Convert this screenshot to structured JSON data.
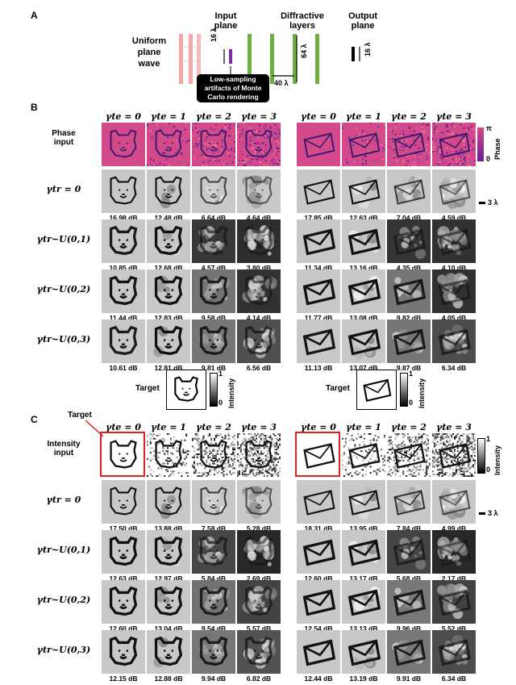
{
  "panelA": {
    "label": "A",
    "input_plane": "Input\nplane",
    "diffractive_layers": "Diffractive\nlayers",
    "output_plane": "Output\nplane",
    "uniform_wave": "Uniform\nplane\nwave",
    "dim_16a": "16 λ",
    "dim_64": "64 λ",
    "dim_40": "40 λ",
    "dim_16b": "16 λ",
    "callout": "Low-sampling\nartifacts of Monte\nCarlo rendering"
  },
  "panelB": {
    "label": "B",
    "headers": [
      "γte = 0",
      "γte = 1",
      "γte = 2",
      "γte = 3"
    ],
    "input_label": "Phase\ninput",
    "rows": [
      "γtr = 0",
      "γtr~U(0,1)",
      "γtr~U(0,2)",
      "γtr~U(0,3)"
    ],
    "bear_db": [
      [
        "16.98 dB",
        "12.48 dB",
        "6.64 dB",
        "4.64 dB"
      ],
      [
        "10.85 dB",
        "12.68 dB",
        "4.57 dB",
        "3.80 dB"
      ],
      [
        "11.44 dB",
        "12.83 dB",
        "9.58 dB",
        "4.14 dB"
      ],
      [
        "10.61 dB",
        "12.81 dB",
        "9.81 dB",
        "6.56 dB"
      ]
    ],
    "env_db": [
      [
        "17.85 dB",
        "12.63 dB",
        "7.04 dB",
        "4.59 dB"
      ],
      [
        "11.34 dB",
        "13.16 dB",
        "4.35 dB",
        "4.10 dB"
      ],
      [
        "11.77 dB",
        "13.08 dB",
        "9.82 dB",
        "4.05 dB"
      ],
      [
        "11.13 dB",
        "13.07 dB",
        "9.87 dB",
        "6.34 dB"
      ]
    ],
    "phase_cbar_top": "π",
    "phase_cbar_bottom": "0",
    "phase_cbar_title": "Phase",
    "scale": "3 λ",
    "target_label": "Target",
    "intensity_title": "Intensity",
    "cbar_one": "1",
    "cbar_zero": "0"
  },
  "panelC": {
    "label": "C",
    "target_callout": "Target",
    "headers": [
      "γte = 0",
      "γte = 1",
      "γte = 2",
      "γte = 3"
    ],
    "input_label": "Intensity\ninput",
    "rows": [
      "γtr = 0",
      "γtr~U(0,1)",
      "γtr~U(0,2)",
      "γtr~U(0,3)"
    ],
    "bear_db": [
      [
        "17.50 dB",
        "13.88 dB",
        "7.58 dB",
        "5.28 dB"
      ],
      [
        "12.63 dB",
        "12.97 dB",
        "5.84 dB",
        "2.69 dB"
      ],
      [
        "12.60 dB",
        "13.04 dB",
        "9.54 dB",
        "5.57 dB"
      ],
      [
        "12.15 dB",
        "12.88 dB",
        "9.94 dB",
        "6.82 dB"
      ]
    ],
    "env_db": [
      [
        "18.31 dB",
        "13.95 dB",
        "7.84 dB",
        "4.99 dB"
      ],
      [
        "12.60 dB",
        "13.17 dB",
        "5.68 dB",
        "2.17 dB"
      ],
      [
        "12.54 dB",
        "13.13 dB",
        "9.96 dB",
        "5.52 dB"
      ],
      [
        "12.44 dB",
        "13.19 dB",
        "9.91 dB",
        "6.34 dB"
      ]
    ],
    "intensity_title": "Intensity",
    "cbar_one": "1",
    "cbar_zero": "0",
    "scale": "3 λ"
  }
}
